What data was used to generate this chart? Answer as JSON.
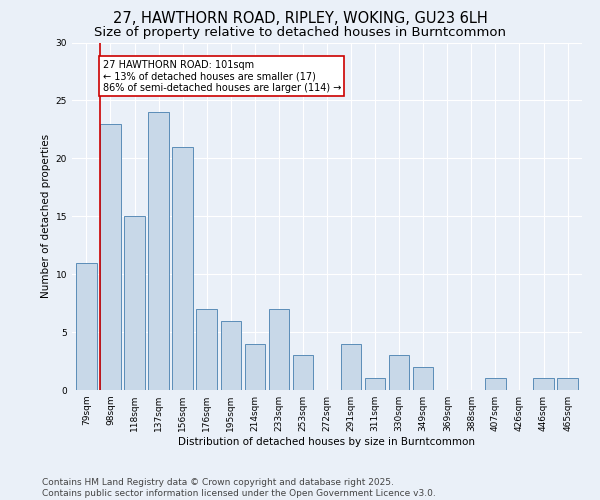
{
  "title1": "27, HAWTHORN ROAD, RIPLEY, WOKING, GU23 6LH",
  "title2": "Size of property relative to detached houses in Burntcommon",
  "xlabel": "Distribution of detached houses by size in Burntcommon",
  "ylabel": "Number of detached properties",
  "categories": [
    "79sqm",
    "98sqm",
    "118sqm",
    "137sqm",
    "156sqm",
    "176sqm",
    "195sqm",
    "214sqm",
    "233sqm",
    "253sqm",
    "272sqm",
    "291sqm",
    "311sqm",
    "330sqm",
    "349sqm",
    "369sqm",
    "388sqm",
    "407sqm",
    "426sqm",
    "446sqm",
    "465sqm"
  ],
  "values": [
    11,
    23,
    15,
    24,
    21,
    7,
    6,
    4,
    7,
    3,
    0,
    4,
    1,
    3,
    2,
    0,
    0,
    1,
    0,
    1,
    1
  ],
  "bar_color": "#c8d8e8",
  "bar_edge_color": "#5b8db8",
  "annotation_text_line1": "27 HAWTHORN ROAD: 101sqm",
  "annotation_text_line2": "← 13% of detached houses are smaller (17)",
  "annotation_text_line3": "86% of semi-detached houses are larger (114) →",
  "annotation_box_color": "#ffffff",
  "annotation_box_edge": "#cc0000",
  "vline_color": "#cc0000",
  "vline_x_index": 1,
  "ylim": [
    0,
    30
  ],
  "yticks": [
    0,
    5,
    10,
    15,
    20,
    25,
    30
  ],
  "footer1": "Contains HM Land Registry data © Crown copyright and database right 2025.",
  "footer2": "Contains public sector information licensed under the Open Government Licence v3.0.",
  "background_color": "#eaf0f8",
  "plot_background_color": "#eaf0f8",
  "grid_color": "#ffffff",
  "title_fontsize": 10.5,
  "subtitle_fontsize": 9.5,
  "axis_label_fontsize": 7.5,
  "tick_fontsize": 6.5,
  "footer_fontsize": 6.5,
  "annotation_fontsize": 7
}
